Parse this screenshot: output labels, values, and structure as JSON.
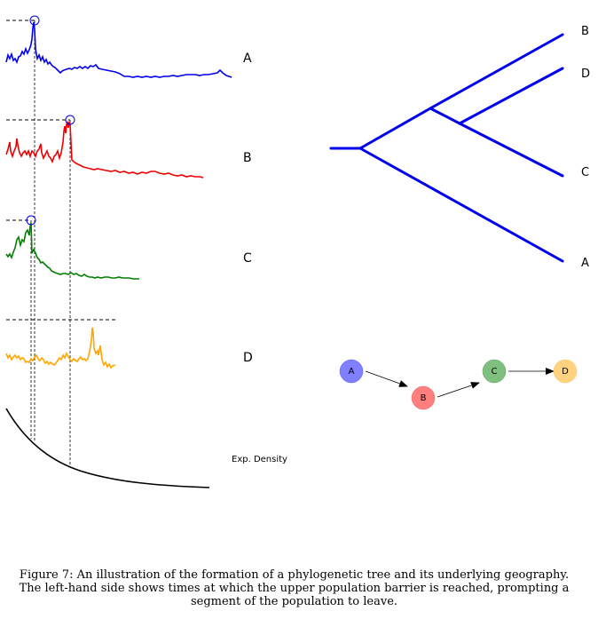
{
  "series": [
    {
      "label": "A",
      "color": "#0000ee"
    },
    {
      "label": "B",
      "color": "#ee0000"
    },
    {
      "label": "C",
      "color": "#008000"
    },
    {
      "label": "D",
      "color": "#ffa500"
    }
  ],
  "density_label": "Exp. Density",
  "tree": {
    "leaves": [
      "B",
      "D",
      "C",
      "A"
    ],
    "color": "#0000ee"
  },
  "network": {
    "nodes": [
      {
        "label": "A",
        "color": "#7f7fff"
      },
      {
        "label": "B",
        "color": "#ff7f7f"
      },
      {
        "label": "C",
        "color": "#7fbf7f"
      },
      {
        "label": "D",
        "color": "#ffd27f"
      }
    ]
  },
  "caption": "Figure 7: An illustration of the formation of a phylogenetic tree and its underlying geography. The left-hand side shows times at which the upper population barrier is reached, prompting a segment of the population to leave."
}
